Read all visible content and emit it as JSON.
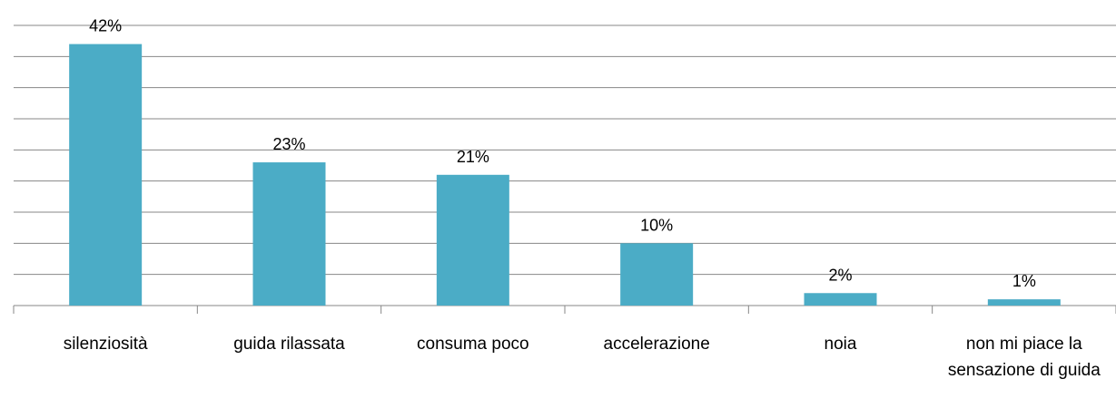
{
  "chart_data": {
    "type": "bar",
    "categories": [
      "silenziosità",
      "guida rilassata",
      "consuma poco",
      "accelerazione",
      "noia",
      "non mi piace la sensazione di guida"
    ],
    "values": [
      42,
      23,
      21,
      10,
      2,
      1
    ],
    "value_labels": [
      "42%",
      "23%",
      "21%",
      "10%",
      "2%",
      "1%"
    ],
    "color": "#4bacc6",
    "ylim": [
      0,
      45
    ],
    "yticks": [
      0,
      5,
      10,
      15,
      20,
      25,
      30,
      35,
      40,
      45
    ],
    "grid": true
  }
}
